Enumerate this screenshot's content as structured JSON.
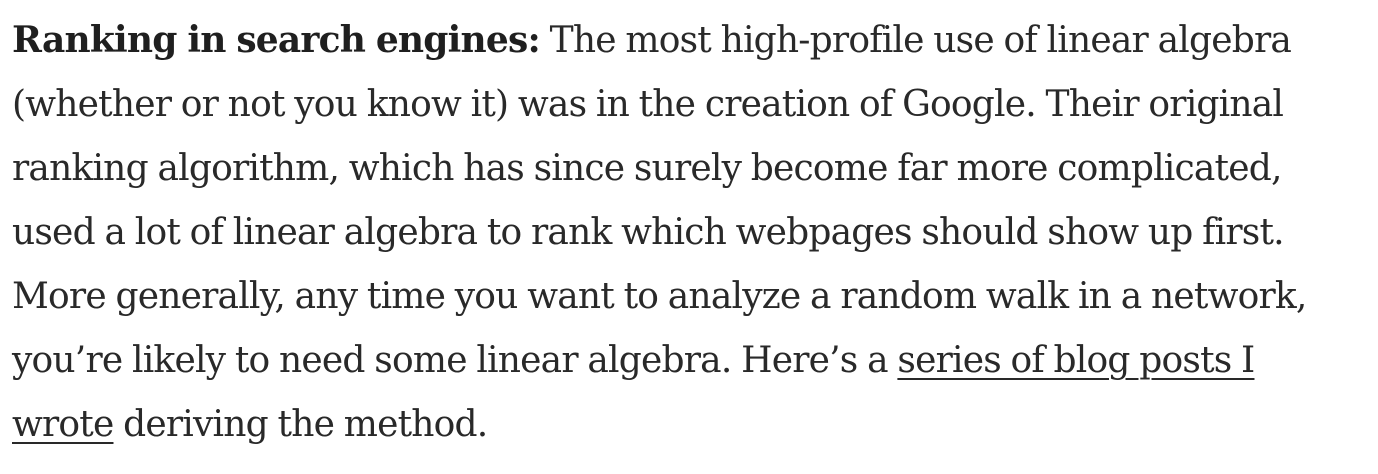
{
  "paragraph": {
    "lead": "Ranking in search engines:",
    "lines": [
      " The most high-profile use of linear algebra",
      "(whether or not you know it) was in the creation of Google. Their original",
      "ranking algorithm, which has since surely become far more complicated,",
      "used a lot of linear algebra to rank which webpages should show up first.",
      "More generally, any time you want to analyze a random walk in a network,",
      "you’re likely to need some linear algebra. Here’s a "
    ],
    "link_part1": "series of blog posts I",
    "link_part2": "wrote",
    "tail": " deriving the method."
  }
}
